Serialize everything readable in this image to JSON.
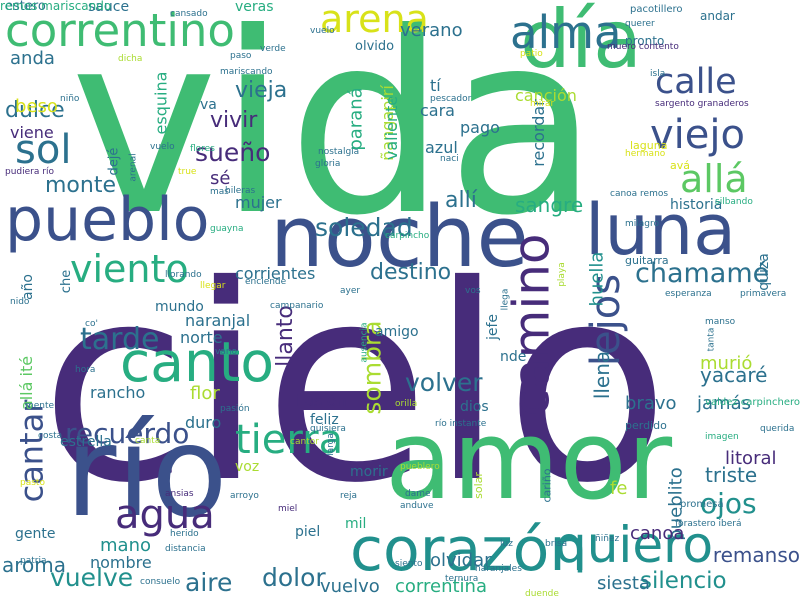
{
  "palette": {
    "purple": "#472c7a",
    "indigo": "#3b518b",
    "blue": "#2c718e",
    "teal": "#21908d",
    "green": "#27ad81",
    "lightgreen": "#5cc863",
    "lime": "#aadc32",
    "yellow": "#d8e219",
    "bright": "#3fbc73"
  },
  "words": [
    {
      "text": "cielo",
      "color": "#472c7a"
    },
    {
      "text": "vida",
      "color": "#3fbc73"
    },
    {
      "text": "amor",
      "color": "#3fbc73"
    },
    {
      "text": "noche",
      "color": "#3b518b"
    },
    {
      "text": "río",
      "color": "#3b518b"
    },
    {
      "text": "día",
      "color": "#3fbc73"
    },
    {
      "text": "corazón",
      "color": "#21908d"
    },
    {
      "text": "luna",
      "color": "#3b518b"
    },
    {
      "text": "pueblo",
      "color": "#3b518b"
    },
    {
      "text": "canto",
      "color": "#27ad81"
    },
    {
      "text": "correntino",
      "color": "#3fbc73"
    },
    {
      "text": "camino",
      "color": "#472c7a"
    },
    {
      "text": "quiero",
      "color": "#21908d"
    },
    {
      "text": "tierra",
      "color": "#27ad81"
    },
    {
      "text": "alma",
      "color": "#2c718e"
    },
    {
      "text": "arena",
      "color": "#d8e219"
    },
    {
      "text": "viejo",
      "color": "#3b518b"
    },
    {
      "text": "calle",
      "color": "#3b518b"
    },
    {
      "text": "allá",
      "color": "#5cc863"
    },
    {
      "text": "sol",
      "color": "#2c718e"
    },
    {
      "text": "agua",
      "color": "#472c7a"
    },
    {
      "text": "viento",
      "color": "#27ad81"
    },
    {
      "text": "lejos",
      "color": "#3b518b"
    },
    {
      "text": "cantar",
      "color": "#3b518b"
    },
    {
      "text": "tarde",
      "color": "#2c718e"
    },
    {
      "text": "recuerdo",
      "color": "#3b518b"
    },
    {
      "text": "soledad",
      "color": "#2c718e"
    },
    {
      "text": "sueño",
      "color": "#472c7a"
    },
    {
      "text": "chamamé",
      "color": "#2c718e"
    },
    {
      "text": "vuelve",
      "color": "#21908d"
    },
    {
      "text": "ojos",
      "color": "#21908d"
    },
    {
      "text": "volver",
      "color": "#2c718e"
    },
    {
      "text": "aire",
      "color": "#2c718e"
    },
    {
      "text": "dolor",
      "color": "#2c718e"
    },
    {
      "text": "silencio",
      "color": "#21908d"
    },
    {
      "text": "sombra",
      "color": "#aadc32"
    },
    {
      "text": "monte",
      "color": "#2c718e"
    },
    {
      "text": "dulce",
      "color": "#2c718e"
    },
    {
      "text": "vieja",
      "color": "#2c718e"
    },
    {
      "text": "vivir",
      "color": "#472c7a"
    },
    {
      "text": "destino",
      "color": "#2c718e"
    },
    {
      "text": "sangre",
      "color": "#27ad81"
    },
    {
      "text": "allí",
      "color": "#2c718e"
    },
    {
      "text": "llanto",
      "color": "#472c7a"
    },
    {
      "text": "mano",
      "color": "#21908d"
    },
    {
      "text": "aroma",
      "color": "#2c718e"
    },
    {
      "text": "triste",
      "color": "#2c718e"
    },
    {
      "text": "litoral",
      "color": "#472c7a"
    },
    {
      "text": "remanso",
      "color": "#3b518b"
    },
    {
      "text": "pueblito",
      "color": "#2c718e"
    },
    {
      "text": "siesta",
      "color": "#2c718e"
    },
    {
      "text": "correntina",
      "color": "#27ad81"
    },
    {
      "text": "vuelvo",
      "color": "#2c718e"
    },
    {
      "text": "olvidar",
      "color": "#2c718e"
    },
    {
      "text": "canoa",
      "color": "#472c7a"
    },
    {
      "text": "huella",
      "color": "#21908d"
    },
    {
      "text": "llena",
      "color": "#2c718e"
    },
    {
      "text": "yacaré",
      "color": "#2c718e"
    },
    {
      "text": "murió",
      "color": "#aadc32"
    },
    {
      "text": "jamás",
      "color": "#2c718e"
    },
    {
      "text": "bravo",
      "color": "#2c718e"
    },
    {
      "text": "beso",
      "color": "#d8e219"
    },
    {
      "text": "anda",
      "color": "#2c718e"
    },
    {
      "text": "verano",
      "color": "#2c718e"
    },
    {
      "text": "paraná",
      "color": "#27ad81"
    },
    {
      "text": "ñangapirí",
      "color": "#aadc32"
    },
    {
      "text": "valiente",
      "color": "#27ad81"
    },
    {
      "text": "tí",
      "color": "#2c718e"
    },
    {
      "text": "cara",
      "color": "#2c718e"
    },
    {
      "text": "pago",
      "color": "#2c718e"
    },
    {
      "text": "azul",
      "color": "#2c718e"
    },
    {
      "text": "sé",
      "color": "#472c7a"
    },
    {
      "text": "mujer",
      "color": "#2c718e"
    },
    {
      "text": "canción",
      "color": "#aadc32"
    },
    {
      "text": "recordar",
      "color": "#2c718e"
    },
    {
      "text": "historia",
      "color": "#2c718e"
    },
    {
      "text": "ilusión",
      "color": "#472c7a"
    },
    {
      "text": "feliz",
      "color": "#2c718e"
    },
    {
      "text": "dios",
      "color": "#2c718e"
    },
    {
      "text": "amigo",
      "color": "#2c718e"
    },
    {
      "text": "nde",
      "color": "#2c718e"
    },
    {
      "text": "jefe",
      "color": "#2c718e"
    },
    {
      "text": "corrientes",
      "color": "#2c718e"
    },
    {
      "text": "naranjal",
      "color": "#2c718e"
    },
    {
      "text": "norte",
      "color": "#2c718e"
    },
    {
      "text": "flor",
      "color": "#aadc32"
    },
    {
      "text": "rancho",
      "color": "#2c718e"
    },
    {
      "text": "duro",
      "color": "#2c718e"
    },
    {
      "text": "estrella",
      "color": "#2c718e"
    },
    {
      "text": "voz",
      "color": "#aadc32"
    },
    {
      "text": "morir",
      "color": "#2c718e"
    },
    {
      "text": "piel",
      "color": "#2c718e"
    },
    {
      "text": "fe",
      "color": "#aadc32"
    },
    {
      "text": "mil",
      "color": "#27ad81"
    },
    {
      "text": "nombre",
      "color": "#2c718e"
    },
    {
      "text": "gente",
      "color": "#2c718e"
    },
    {
      "text": "mundo",
      "color": "#2c718e"
    },
    {
      "text": "allá ité",
      "color": "#5cc863"
    },
    {
      "text": "año",
      "color": "#2c718e"
    },
    {
      "text": "che",
      "color": "#2c718e"
    },
    {
      "text": "esquina",
      "color": "#27ad81"
    },
    {
      "text": "viene",
      "color": "#472c7a"
    },
    {
      "text": "dejé",
      "color": "#2c718e"
    },
    {
      "text": "va",
      "color": "#2c718e"
    },
    {
      "text": "olvido",
      "color": "#2c718e"
    },
    {
      "text": "veras",
      "color": "#27ad81"
    },
    {
      "text": "sauce",
      "color": "#2c718e"
    },
    {
      "text": "estero",
      "color": "#2c718e"
    },
    {
      "text": "pronto",
      "color": "#2c718e"
    },
    {
      "text": "andar",
      "color": "#2c718e"
    },
    {
      "text": "pacotillero",
      "color": "#2c718e"
    },
    {
      "text": "querer",
      "color": "#2c718e"
    },
    {
      "text": "muero contento",
      "color": "#472c7a"
    },
    {
      "text": "sargento granaderos",
      "color": "#472c7a"
    },
    {
      "text": "laguna",
      "color": "#d8e219"
    },
    {
      "text": "hermano",
      "color": "#d8e219"
    },
    {
      "text": "avá",
      "color": "#d8e219"
    },
    {
      "text": "canoa remos",
      "color": "#2c718e"
    },
    {
      "text": "quiza",
      "color": "#2c718e"
    },
    {
      "text": "silbando",
      "color": "#27ad81"
    },
    {
      "text": "milagro",
      "color": "#2c718e"
    },
    {
      "text": "guitarra",
      "color": "#2c718e"
    },
    {
      "text": "esperanza",
      "color": "#2c718e"
    },
    {
      "text": "primavera",
      "color": "#2c718e"
    },
    {
      "text": "manso",
      "color": "#2c718e"
    },
    {
      "text": "tanta",
      "color": "#2c718e"
    },
    {
      "text": "valdez carpinchero",
      "color": "#27ad81"
    },
    {
      "text": "querida",
      "color": "#2c718e"
    },
    {
      "text": "imagen",
      "color": "#27ad81"
    },
    {
      "text": "perdido",
      "color": "#2c718e"
    },
    {
      "text": "cariño",
      "color": "#2c718e"
    },
    {
      "text": "promesa",
      "color": "#2c718e"
    },
    {
      "text": "forastero iberá",
      "color": "#2c718e"
    },
    {
      "text": "ñiñez",
      "color": "#2c718e"
    },
    {
      "text": "duende",
      "color": "#aadc32"
    },
    {
      "text": "naranjales",
      "color": "#2c718e"
    },
    {
      "text": "ternura",
      "color": "#2c718e"
    },
    {
      "text": "brisa",
      "color": "#2c718e"
    },
    {
      "text": "luz",
      "color": "#2c718e"
    },
    {
      "text": "siento",
      "color": "#2c718e"
    },
    {
      "text": "anduve",
      "color": "#2c718e"
    },
    {
      "text": "dame",
      "color": "#2c718e"
    },
    {
      "text": "solar",
      "color": "#aadc32"
    },
    {
      "text": "pueblero",
      "color": "#aadc32"
    },
    {
      "text": "larga",
      "color": "#2c718e"
    },
    {
      "text": "reja",
      "color": "#2c718e"
    },
    {
      "text": "miel",
      "color": "#472c7a"
    },
    {
      "text": "arroyo",
      "color": "#2c718e"
    },
    {
      "text": "ansias",
      "color": "#472c7a"
    },
    {
      "text": "herido",
      "color": "#2c718e"
    },
    {
      "text": "distancia",
      "color": "#2c718e"
    },
    {
      "text": "orilla",
      "color": "#aadc32"
    },
    {
      "text": "quisiera",
      "color": "#2c718e"
    },
    {
      "text": "río instante",
      "color": "#2c718e"
    },
    {
      "text": "cantor",
      "color": "#aadc32"
    },
    {
      "text": "canta",
      "color": "#aadc32"
    },
    {
      "text": "costa",
      "color": "#2c718e"
    },
    {
      "text": "mente",
      "color": "#2c718e"
    },
    {
      "text": "pasto",
      "color": "#d8e219"
    },
    {
      "text": "patria",
      "color": "#2c718e"
    },
    {
      "text": "consuelo",
      "color": "#2c718e"
    },
    {
      "text": "pasión",
      "color": "#2c718e"
    },
    {
      "text": "vano",
      "color": "#2c718e"
    },
    {
      "text": "hora",
      "color": "#2c718e"
    },
    {
      "text": "co'",
      "color": "#2c718e"
    },
    {
      "text": "llorando",
      "color": "#2c718e"
    },
    {
      "text": "nido",
      "color": "#2c718e"
    },
    {
      "text": "campanario",
      "color": "#2c718e"
    },
    {
      "text": "guayna",
      "color": "#27ad81"
    },
    {
      "text": "hileras",
      "color": "#2c718e"
    },
    {
      "text": "mas",
      "color": "#2c718e"
    },
    {
      "text": "true",
      "color": "#d8e219"
    },
    {
      "text": "flores",
      "color": "#27ad81"
    },
    {
      "text": "vuelo",
      "color": "#2c718e"
    },
    {
      "text": "arenal",
      "color": "#2c718e"
    },
    {
      "text": "pudiera río",
      "color": "#472c7a"
    },
    {
      "text": "nostalgia",
      "color": "#2c718e"
    },
    {
      "text": "gloria",
      "color": "#2c718e"
    },
    {
      "text": "pescador",
      "color": "#2c718e"
    },
    {
      "text": "naci",
      "color": "#2c718e"
    },
    {
      "text": "mirar",
      "color": "#d8e219"
    },
    {
      "text": "isla",
      "color": "#2c718e"
    },
    {
      "text": "patio",
      "color": "#d8e219"
    },
    {
      "text": "cansado",
      "color": "#2c718e"
    },
    {
      "text": "vuelo",
      "color": "#2c718e"
    },
    {
      "text": "dicha",
      "color": "#aadc32"
    },
    {
      "text": "paso",
      "color": "#2c718e"
    },
    {
      "text": "verde",
      "color": "#2c718e"
    },
    {
      "text": "mariscando",
      "color": "#2c718e"
    },
    {
      "text": "niño",
      "color": "#2c718e"
    },
    {
      "text": "llegar",
      "color": "#d8e219"
    },
    {
      "text": "enciende",
      "color": "#2c718e"
    },
    {
      "text": "ayer",
      "color": "#2c718e"
    },
    {
      "text": "ausencia",
      "color": "#27ad81"
    },
    {
      "text": "carpincho",
      "color": "#27ad81"
    },
    {
      "text": "vos",
      "color": "#2c718e"
    },
    {
      "text": "llega",
      "color": "#2c718e"
    },
    {
      "text": "playa",
      "color": "#aadc32"
    },
    {
      "text": "remos mariscando",
      "color": "#27ad81"
    }
  ]
}
